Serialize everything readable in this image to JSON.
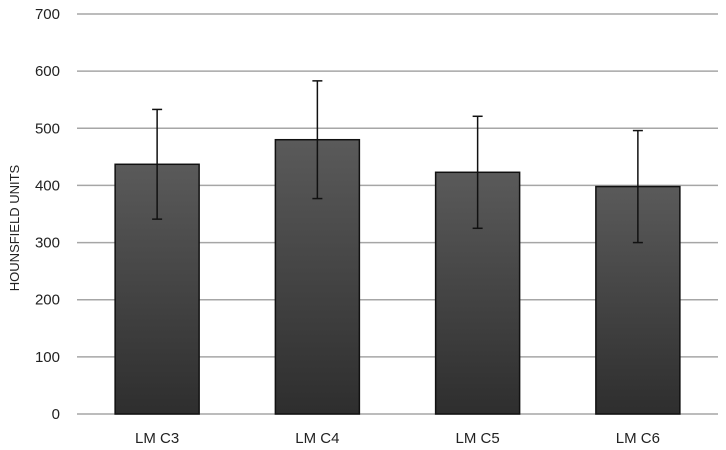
{
  "chart_data": {
    "type": "bar",
    "title": "",
    "xlabel": "",
    "ylabel": "HOUNSFIELD UNITS",
    "categories": [
      "LM C3",
      "LM C4",
      "LM C5",
      "LM C6"
    ],
    "values": [
      437,
      480,
      423,
      398
    ],
    "error": [
      96,
      103,
      98,
      98
    ],
    "ylim": [
      0,
      700
    ],
    "yticks": [
      0,
      100,
      200,
      300,
      400,
      500,
      600,
      700
    ],
    "grid": true,
    "bar_color": "#404040",
    "grid_color": "#a6a6a6"
  }
}
